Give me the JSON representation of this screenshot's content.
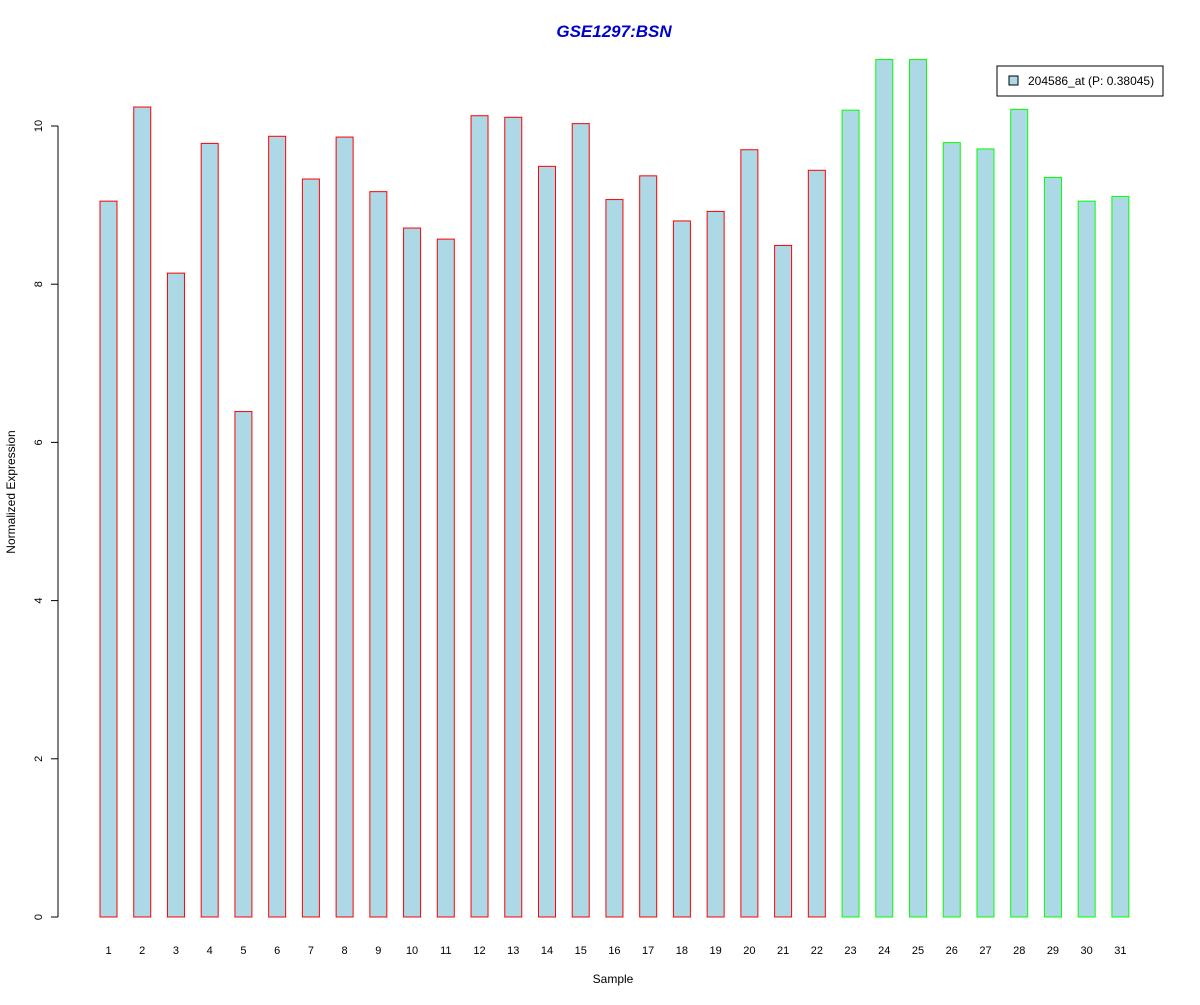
{
  "chart_data": {
    "type": "bar",
    "title": "GSE1297:BSN",
    "xlabel": "Sample",
    "ylabel": "Normalized Expression",
    "categories": [
      "1",
      "2",
      "3",
      "4",
      "5",
      "6",
      "7",
      "8",
      "9",
      "10",
      "11",
      "12",
      "13",
      "14",
      "15",
      "16",
      "17",
      "18",
      "19",
      "20",
      "21",
      "22",
      "23",
      "24",
      "25",
      "26",
      "27",
      "28",
      "29",
      "30",
      "31"
    ],
    "series": [
      {
        "name": "204586_at (P: 0.38045)",
        "values": [
          9.05,
          10.24,
          8.14,
          9.78,
          6.39,
          9.87,
          9.33,
          9.86,
          9.17,
          8.71,
          8.57,
          10.13,
          10.11,
          9.49,
          10.03,
          9.07,
          9.37,
          8.8,
          8.92,
          9.7,
          8.49,
          9.44,
          10.2,
          10.84,
          10.84,
          9.79,
          9.71,
          10.21,
          9.35,
          9.05,
          9.11
        ]
      }
    ],
    "group_outline": [
      "red",
      "red",
      "red",
      "red",
      "red",
      "red",
      "red",
      "red",
      "red",
      "red",
      "red",
      "red",
      "red",
      "red",
      "red",
      "red",
      "red",
      "red",
      "red",
      "red",
      "red",
      "red",
      "green",
      "green",
      "green",
      "green",
      "green",
      "green",
      "green",
      "green",
      "green"
    ],
    "yticks": [
      0,
      2,
      4,
      6,
      8,
      10
    ],
    "ylim": [
      0,
      10.84
    ],
    "grid": false,
    "legend_position": "top-right",
    "colors": {
      "bar_fill": "#add8e6",
      "outline_red": "#ff0000",
      "outline_green": "#00ff00",
      "title": "#0000cd"
    }
  }
}
